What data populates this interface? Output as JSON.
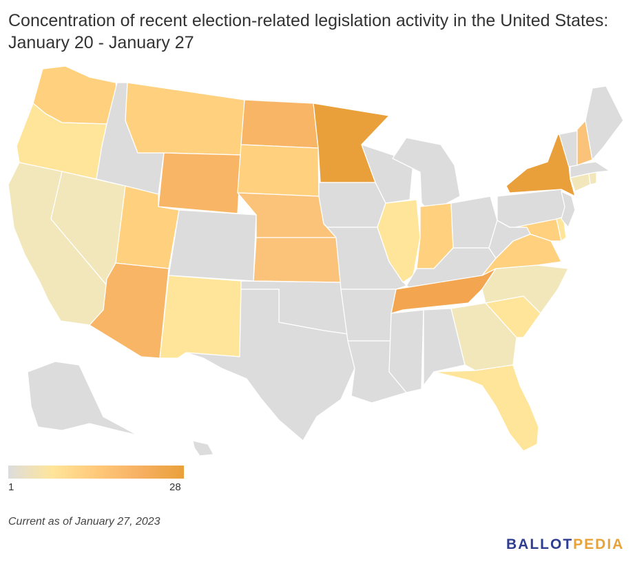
{
  "title": "Concentration of recent election-related legislation activity in the United States: January 20 - January 27",
  "legend": {
    "min_label": "1",
    "max_label": "28",
    "color_stops": [
      "#dcdcdc",
      "#ffe59a",
      "#ffc97a",
      "#f7b062",
      "#e9a03a"
    ]
  },
  "note": "Current as of January 27, 2023",
  "logo": {
    "part1": "BALLOT",
    "part2": "PEDIA"
  },
  "colors": {
    "no_data": "#dcdcdc",
    "level_1": "#f2e7bb",
    "level_2": "#ffe59a",
    "level_3": "#ffd17f",
    "level_4": "#fbc379",
    "level_5": "#f8b566",
    "level_6": "#f3a64f",
    "level_7": "#e9a03a"
  },
  "states": [
    {
      "name": "Washington",
      "level": 3
    },
    {
      "name": "Oregon",
      "level": 2
    },
    {
      "name": "California",
      "level": 1
    },
    {
      "name": "Nevada",
      "level": 1
    },
    {
      "name": "Idaho",
      "level": 0
    },
    {
      "name": "Montana",
      "level": 3
    },
    {
      "name": "Wyoming",
      "level": 5
    },
    {
      "name": "Utah",
      "level": 3
    },
    {
      "name": "Arizona",
      "level": 5
    },
    {
      "name": "Colorado",
      "level": 0
    },
    {
      "name": "New Mexico",
      "level": 2
    },
    {
      "name": "North Dakota",
      "level": 5
    },
    {
      "name": "South Dakota",
      "level": 3
    },
    {
      "name": "Nebraska",
      "level": 4
    },
    {
      "name": "Kansas",
      "level": 4
    },
    {
      "name": "Oklahoma",
      "level": 0
    },
    {
      "name": "Texas",
      "level": 0
    },
    {
      "name": "Minnesota",
      "level": 7
    },
    {
      "name": "Iowa",
      "level": 0
    },
    {
      "name": "Missouri",
      "level": 0
    },
    {
      "name": "Arkansas",
      "level": 0
    },
    {
      "name": "Louisiana",
      "level": 0
    },
    {
      "name": "Wisconsin",
      "level": 0
    },
    {
      "name": "Illinois",
      "level": 2
    },
    {
      "name": "Michigan",
      "level": 0
    },
    {
      "name": "Indiana",
      "level": 3
    },
    {
      "name": "Ohio",
      "level": 0
    },
    {
      "name": "Kentucky",
      "level": 0
    },
    {
      "name": "Tennessee",
      "level": 6
    },
    {
      "name": "Mississippi",
      "level": 0
    },
    {
      "name": "Alabama",
      "level": 0
    },
    {
      "name": "Georgia",
      "level": 1
    },
    {
      "name": "Florida",
      "level": 2
    },
    {
      "name": "South Carolina",
      "level": 2
    },
    {
      "name": "North Carolina",
      "level": 1
    },
    {
      "name": "Virginia",
      "level": 3
    },
    {
      "name": "West Virginia",
      "level": 0
    },
    {
      "name": "Pennsylvania",
      "level": 0
    },
    {
      "name": "New York",
      "level": 7
    },
    {
      "name": "Maryland",
      "level": 3
    },
    {
      "name": "Delaware",
      "level": 2
    },
    {
      "name": "New Jersey",
      "level": 0
    },
    {
      "name": "Connecticut",
      "level": 1
    },
    {
      "name": "Rhode Island",
      "level": 1
    },
    {
      "name": "Massachusetts",
      "level": 0
    },
    {
      "name": "Vermont",
      "level": 0
    },
    {
      "name": "New Hampshire",
      "level": 4
    },
    {
      "name": "Maine",
      "level": 0
    },
    {
      "name": "Alaska",
      "level": 0
    },
    {
      "name": "Hawaii",
      "level": 0
    }
  ]
}
